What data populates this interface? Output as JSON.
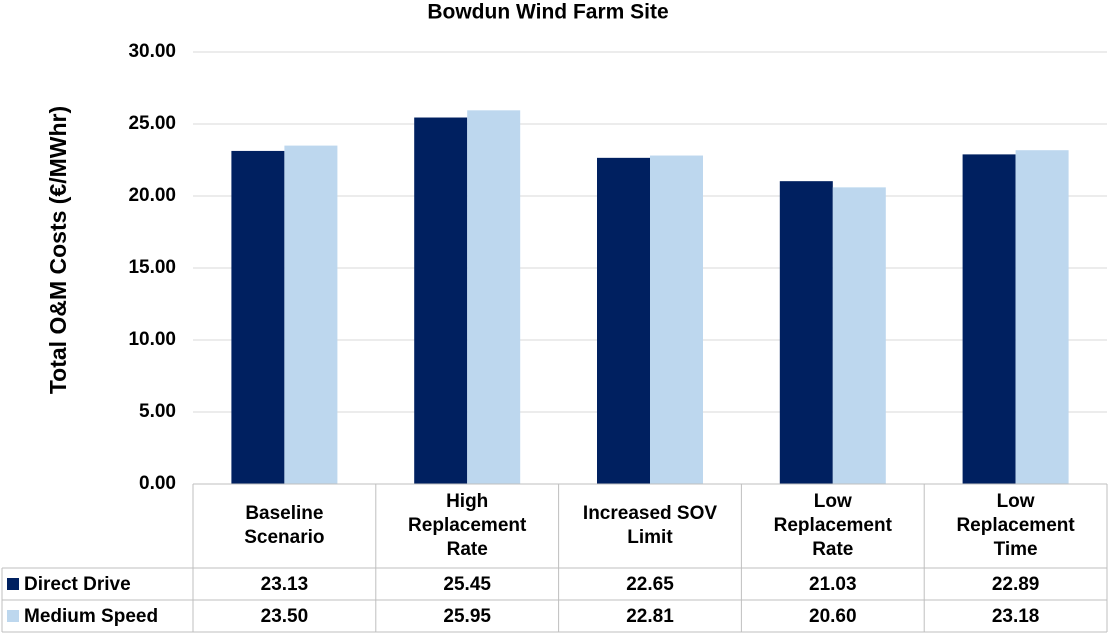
{
  "chart_data": {
    "type": "bar",
    "title": "Bowdun Wind Farm Site",
    "y_label": "Total O&M Costs (€/MWhr)",
    "categories": [
      "Baseline Scenario",
      "High Replacement Rate",
      "Increased SOV Limit",
      "Low Replacement Rate",
      "Low Replacement Time"
    ],
    "series": [
      {
        "name": "Direct Drive",
        "color": "#002060",
        "values": [
          23.13,
          25.45,
          22.65,
          21.03,
          22.89
        ],
        "value_labels": [
          "23.13",
          "25.45",
          "22.65",
          "21.03",
          "22.89"
        ]
      },
      {
        "name": "Medium Speed",
        "color": "#bdd7ee",
        "values": [
          23.5,
          25.95,
          22.81,
          20.6,
          23.18
        ],
        "value_labels": [
          "23.50",
          "25.95",
          "22.81",
          "20.60",
          "23.18"
        ]
      }
    ],
    "ylim": [
      0,
      30
    ],
    "yticks": [
      {
        "value": 0,
        "label": "0.00"
      },
      {
        "value": 5,
        "label": "5.00"
      },
      {
        "value": 10,
        "label": "10.00"
      },
      {
        "value": 15,
        "label": "15.00"
      },
      {
        "value": 20,
        "label": "20.00"
      },
      {
        "value": 25,
        "label": "25.00"
      },
      {
        "value": 30,
        "label": "30.00"
      }
    ],
    "grid": true,
    "legend": "data-table"
  }
}
